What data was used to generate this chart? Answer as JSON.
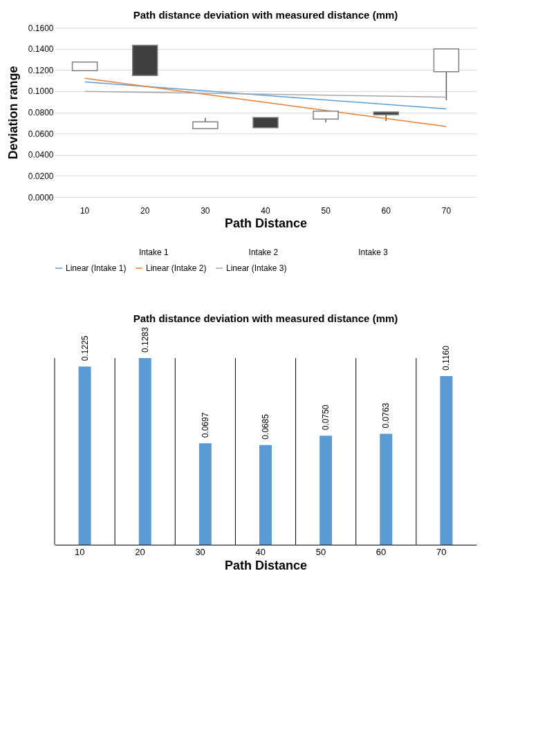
{
  "chart_data": [
    {
      "type": "candlestick",
      "title": "Path distance deviation with measured distance (mm)",
      "xlabel": "Path Distance",
      "ylabel": "Deviation range",
      "categories": [
        "10",
        "20",
        "30",
        "40",
        "50",
        "60",
        "70"
      ],
      "ohlc": [
        [
          0.1193,
          0.1275,
          0.1193,
          0.1275
        ],
        [
          0.1433,
          0.1433,
          0.1148,
          0.1148
        ],
        [
          0.0646,
          0.0748,
          0.0646,
          0.0711
        ],
        [
          0.0751,
          0.0751,
          0.0654,
          0.0654
        ],
        [
          0.0737,
          0.0812,
          0.0706,
          0.0812
        ],
        [
          0.0803,
          0.0803,
          0.0718,
          0.0777
        ],
        [
          0.1183,
          0.14,
          0.0915,
          0.14
        ]
      ],
      "colors": [
        "#ffffff",
        "#404040",
        "#ffffff",
        "#404040",
        "#ffffff",
        "#404040",
        "#ffffff"
      ],
      "series": [
        {
          "name": "Linear (Intake 1)",
          "type": "line",
          "color": "#5b9bd5",
          "x": [
            "10",
            "70"
          ],
          "values": [
            0.1088,
            0.0832
          ]
        },
        {
          "name": "Linear (Intake 2)",
          "type": "line",
          "color": "#ed7d31",
          "x": [
            "10",
            "70"
          ],
          "values": [
            0.1122,
            0.0666
          ]
        },
        {
          "name": "Linear (Intake 3)",
          "type": "line",
          "color": "#a5a5a5",
          "x": [
            "10",
            "70"
          ],
          "values": [
            0.0998,
            0.0944
          ]
        }
      ],
      "annotations": [
        "Intake 1",
        "Intake 2",
        "Intake 3"
      ],
      "ylim": [
        0,
        0.16
      ],
      "yticks": [
        {
          "value": 0,
          "label": "0.0000"
        },
        {
          "value": 0.02,
          "label": "0.0200"
        },
        {
          "value": 0.04,
          "label": "0.0400"
        },
        {
          "value": 0.06,
          "label": "0.0600"
        },
        {
          "value": 0.08,
          "label": "0.0800"
        },
        {
          "value": 0.1,
          "label": "0.1000"
        },
        {
          "value": 0.12,
          "label": "0.1200"
        },
        {
          "value": 0.14,
          "label": "0.1400"
        },
        {
          "value": 0.16,
          "label": "0.1600"
        }
      ],
      "grid": "y",
      "legend": "bottom"
    },
    {
      "type": "bar",
      "title": "Path distance deviation with measured distance (mm)",
      "xlabel": "Path Distance",
      "categories": [
        "10",
        "20",
        "30",
        "40",
        "50",
        "60",
        "70"
      ],
      "values": [
        0.1225,
        0.1283,
        0.0697,
        0.0685,
        0.075,
        0.0763,
        0.116
      ],
      "value_labels": [
        "0.1225",
        "0.1283",
        "0.0697",
        "0.0685",
        "0.0750",
        "0.0763",
        "0.1160"
      ],
      "color": "#5b9bd5",
      "grid": "x"
    }
  ]
}
